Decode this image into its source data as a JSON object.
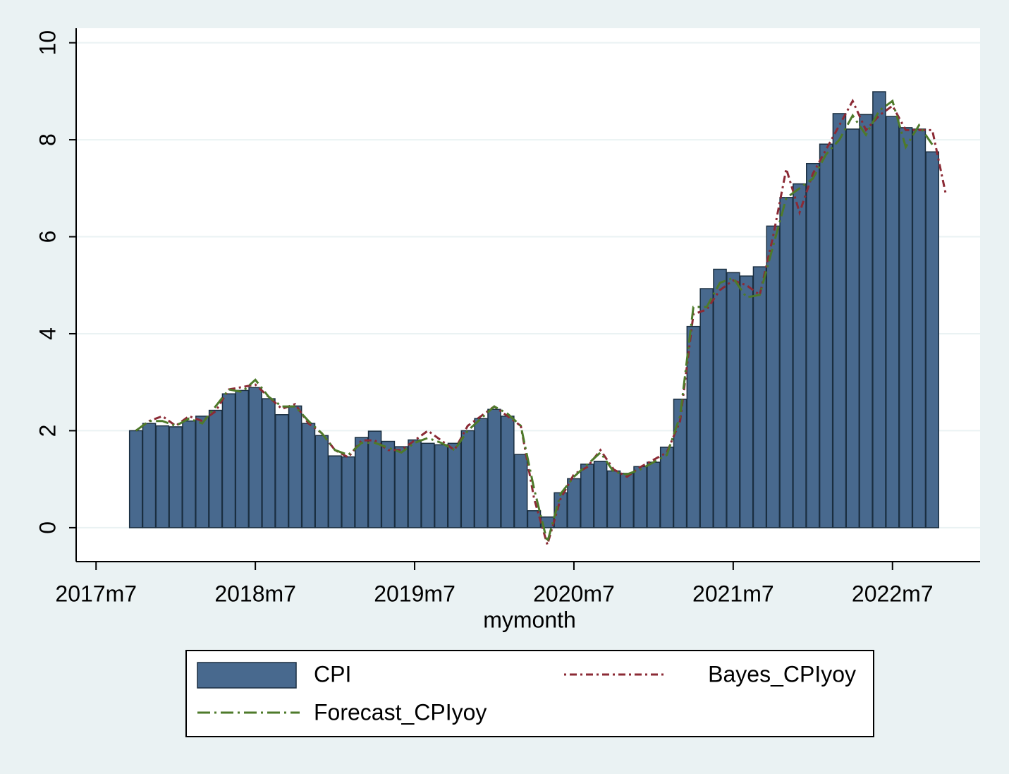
{
  "chart_data": {
    "type": "bar",
    "x_label": "mymonth",
    "x": [
      693,
      694,
      695,
      696,
      697,
      698,
      699,
      700,
      701,
      702,
      703,
      704,
      705,
      706,
      707,
      708,
      709,
      710,
      711,
      712,
      713,
      714,
      715,
      716,
      717,
      718,
      719,
      720,
      721,
      722,
      723,
      724,
      725,
      726,
      727,
      728,
      729,
      730,
      731,
      732,
      733,
      734,
      735,
      736,
      737,
      738,
      739,
      740,
      741,
      742,
      743,
      744,
      745,
      746,
      747,
      748,
      749,
      750,
      751,
      752,
      753,
      754
    ],
    "xlim": [
      688.5,
      756.6
    ],
    "xticks": [
      {
        "value": 690,
        "label": "2017m7"
      },
      {
        "value": 702,
        "label": "2018m7"
      },
      {
        "value": 714,
        "label": "2019m7"
      },
      {
        "value": 726,
        "label": "2020m7"
      },
      {
        "value": 738,
        "label": "2021m7"
      },
      {
        "value": 750,
        "label": "2022m7"
      }
    ],
    "ylim": [
      -0.7,
      10.3
    ],
    "yticks": [
      0,
      2,
      4,
      6,
      8,
      10
    ],
    "grid": true,
    "series": [
      {
        "name": "CPI",
        "type": "bar",
        "color": "#48698e",
        "values": [
          2.0,
          2.15,
          2.1,
          2.08,
          2.2,
          2.3,
          2.42,
          2.76,
          2.83,
          2.89,
          2.66,
          2.33,
          2.51,
          2.15,
          1.9,
          1.48,
          1.46,
          1.86,
          1.99,
          1.78,
          1.67,
          1.81,
          1.74,
          1.71,
          1.74,
          2.0,
          2.25,
          2.44,
          2.3,
          1.51,
          0.35,
          0.22,
          0.72,
          1.01,
          1.31,
          1.37,
          1.17,
          1.12,
          1.26,
          1.35,
          1.66,
          2.65,
          4.15,
          4.93,
          5.33,
          5.26,
          5.19,
          5.38,
          6.22,
          6.81,
          7.09,
          7.51,
          7.91,
          8.54,
          8.22,
          8.52,
          8.99,
          8.48,
          8.25,
          8.22,
          7.75,
          null
        ]
      },
      {
        "name": "Bayes_CPIyoy",
        "type": "line",
        "color": "#8b2a35",
        "dash": "3 5 10 5",
        "values": [
          2.0,
          2.2,
          2.3,
          2.1,
          2.3,
          2.2,
          2.4,
          2.85,
          2.9,
          2.95,
          2.7,
          2.45,
          2.55,
          2.15,
          1.95,
          1.6,
          1.45,
          1.8,
          1.8,
          1.6,
          1.6,
          1.8,
          2.0,
          1.8,
          1.6,
          2.1,
          2.3,
          2.5,
          2.3,
          2.1,
          0.6,
          -0.35,
          0.6,
          1.1,
          1.25,
          1.6,
          1.2,
          1.05,
          1.25,
          1.4,
          1.55,
          2.2,
          4.4,
          4.5,
          4.9,
          5.1,
          5.0,
          4.8,
          6.0,
          7.4,
          6.5,
          7.3,
          7.8,
          8.3,
          8.8,
          8.2,
          8.5,
          8.7,
          8.2,
          8.2,
          8.2,
          6.9
        ]
      },
      {
        "name": "Forecast_CPIyoy",
        "type": "line",
        "color": "#4e7a2a",
        "dash": "18 6 3 6",
        "values": [
          2.0,
          2.2,
          2.2,
          2.1,
          2.25,
          2.15,
          2.5,
          2.85,
          2.8,
          3.05,
          2.7,
          2.5,
          2.5,
          2.2,
          1.95,
          1.6,
          1.5,
          1.75,
          1.75,
          1.65,
          1.55,
          1.75,
          1.85,
          1.75,
          1.6,
          2.0,
          2.25,
          2.5,
          2.35,
          2.1,
          0.8,
          -0.3,
          0.7,
          1.05,
          1.3,
          1.55,
          1.15,
          1.1,
          1.2,
          1.35,
          1.5,
          2.3,
          4.55,
          4.55,
          5.05,
          5.15,
          4.75,
          4.8,
          5.8,
          6.8,
          7.0,
          7.2,
          7.7,
          8.0,
          8.5,
          8.1,
          8.6,
          8.8,
          7.85,
          8.3,
          7.9,
          null
        ]
      }
    ]
  }
}
